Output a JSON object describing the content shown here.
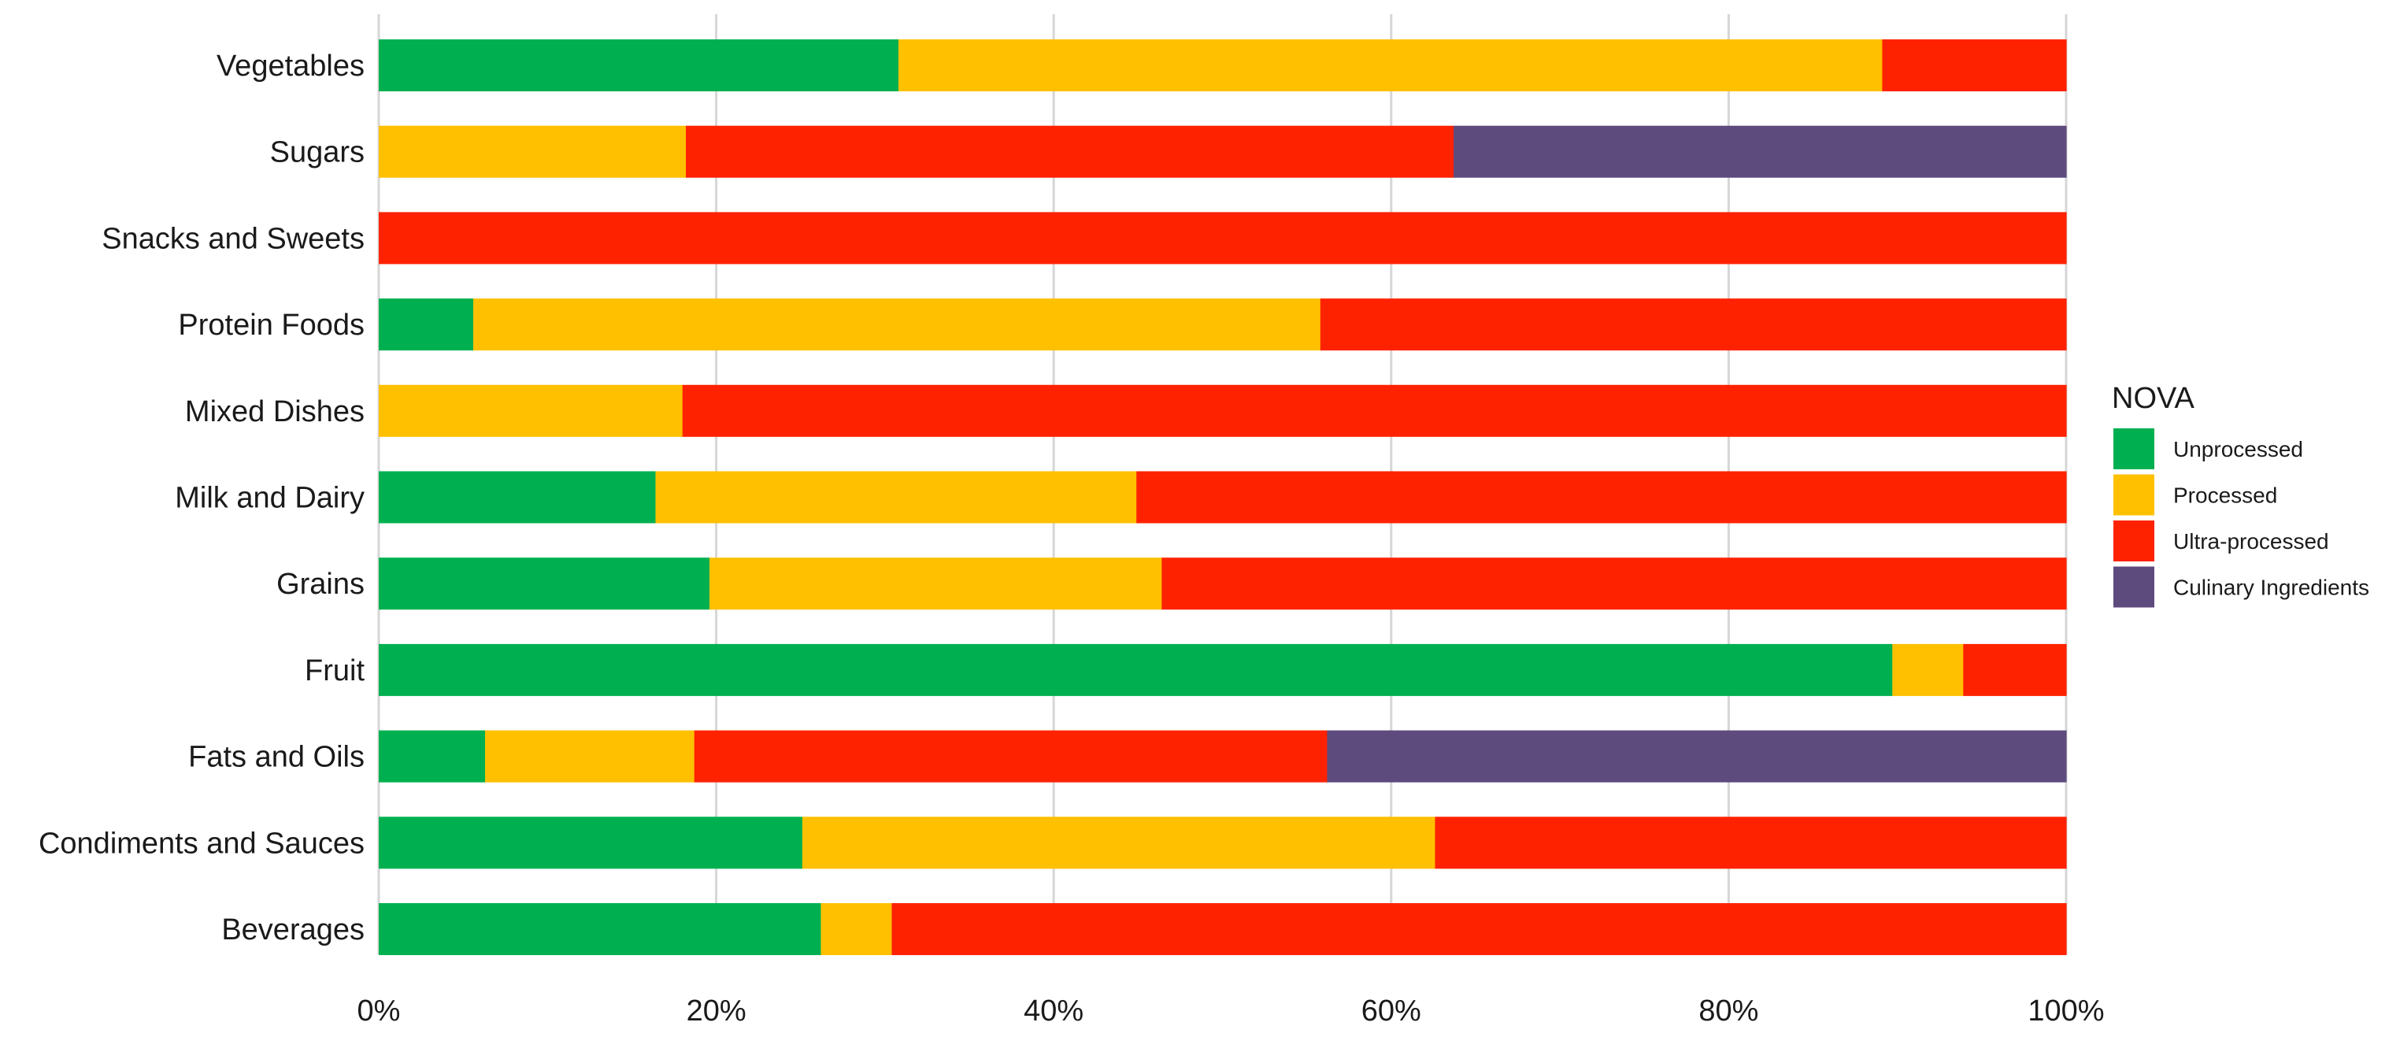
{
  "chart_data": {
    "type": "bar",
    "orientation": "horizontal",
    "stacked": "percent",
    "title": "",
    "xlabel": "",
    "ylabel": "",
    "xlim": [
      0,
      100
    ],
    "grid": true,
    "legend_position": "right",
    "legend_title": "NOVA",
    "x_ticks": [
      "0%",
      "20%",
      "40%",
      "60%",
      "80%",
      "100%"
    ],
    "categories": [
      "Vegetables",
      "Sugars",
      "Snacks and Sweets",
      "Protein Foods",
      "Mixed Dishes",
      "Milk and Dairy",
      "Grains",
      "Fruit",
      "Fats and Oils",
      "Condiments and Sauces",
      "Beverages"
    ],
    "series": [
      {
        "name": "Unprocessed",
        "color": "#00b050",
        "values": [
          30.8,
          0,
          0,
          5.6,
          0,
          16.4,
          19.6,
          89.7,
          6.3,
          25.1,
          26.2
        ]
      },
      {
        "name": "Processed",
        "color": "#ffc000",
        "values": [
          58.3,
          18.2,
          0,
          50.2,
          18.0,
          28.5,
          26.8,
          4.2,
          12.4,
          37.5,
          4.2
        ]
      },
      {
        "name": "Ultra-processed",
        "color": "#ff2200",
        "values": [
          10.9,
          45.5,
          100,
          44.2,
          82.0,
          55.1,
          53.6,
          6.1,
          37.5,
          37.4,
          69.6
        ]
      },
      {
        "name": "Culinary Ingredients",
        "color": "#5e4b7e",
        "values": [
          0,
          36.3,
          0,
          0,
          0,
          0,
          0,
          0,
          43.8,
          0,
          0
        ]
      }
    ]
  }
}
